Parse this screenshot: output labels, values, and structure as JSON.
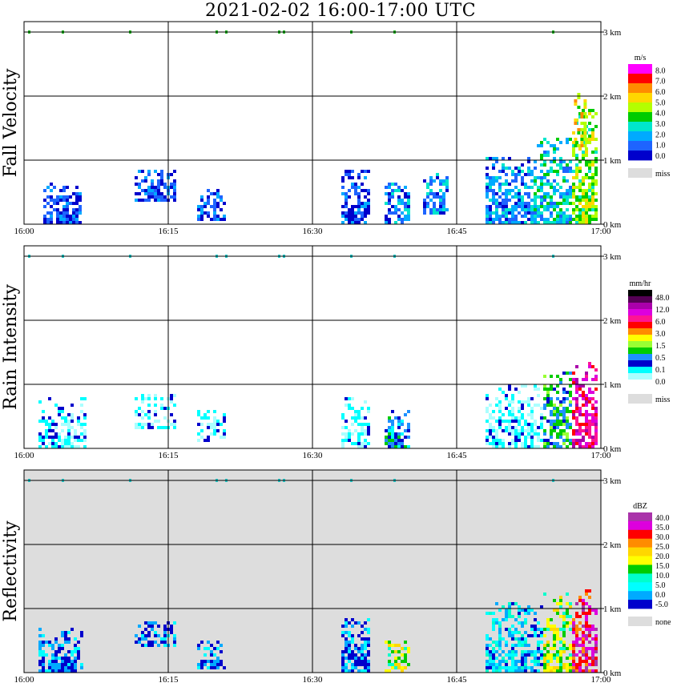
{
  "title": "2021-02-02   16:00-17:00 UTC",
  "chart_data": [
    {
      "type": "heatmap",
      "title": "Fall Velocity",
      "xlabel": "",
      "ylabel": "",
      "x_ticks": [
        "16:00",
        "16:15",
        "16:30",
        "16:45",
        "17:00"
      ],
      "y_ticks": [
        "0 km",
        "1 km",
        "2 km",
        "3 km"
      ],
      "xlim": [
        "16:00",
        "17:00"
      ],
      "ylim": [
        0,
        3.5
      ],
      "grid": true,
      "background": "#ffffff",
      "colorbar": {
        "unit": "m/s",
        "labels": [
          "8.0",
          "7.0",
          "6.0",
          "5.0",
          "4.0",
          "3.0",
          "2.0",
          "1.0",
          "0.0"
        ],
        "colors": [
          "#ff00ff",
          "#ff0000",
          "#ff8c00",
          "#ffd700",
          "#b4ff00",
          "#00cc00",
          "#00e6cc",
          "#00aaff",
          "#1e64ff",
          "#0000cc"
        ],
        "missing_label": "miss",
        "missing_color": "#dddddd"
      },
      "cells": [
        {
          "t0": 2.0,
          "t1": 6.0,
          "h0": 0.0,
          "h1": 0.65,
          "level": 9
        },
        {
          "t0": 11.5,
          "t1": 15.5,
          "h0": 0.35,
          "h1": 0.85,
          "level": 9
        },
        {
          "t0": 18.0,
          "t1": 21.0,
          "h0": 0.05,
          "h1": 0.55,
          "level": 9
        },
        {
          "t0": 33.0,
          "t1": 36.0,
          "h0": 0.0,
          "h1": 0.85,
          "level": 9
        },
        {
          "t0": 37.5,
          "t1": 40.0,
          "h0": 0.0,
          "h1": 0.65,
          "level": 8
        },
        {
          "t0": 41.5,
          "t1": 44.0,
          "h0": 0.15,
          "h1": 0.8,
          "level": 8
        },
        {
          "t0": 48.0,
          "t1": 53.0,
          "h0": 0.0,
          "h1": 1.05,
          "level": 8
        },
        {
          "t0": 53.0,
          "t1": 57.0,
          "h0": 0.0,
          "h1": 1.35,
          "level": 7
        },
        {
          "t0": 57.0,
          "t1": 59.5,
          "h0": 0.0,
          "h1": 1.8,
          "level": 5
        },
        {
          "t0": 57.2,
          "t1": 58.2,
          "h0": 1.2,
          "h1": 2.1,
          "level": 4
        }
      ],
      "top_marks": [
        0.5,
        4.0,
        11.0,
        20.0,
        21.0,
        26.5,
        27.0,
        34.0,
        38.5,
        55.0
      ]
    },
    {
      "type": "heatmap",
      "title": "Rain Intensity",
      "xlabel": "",
      "ylabel": "",
      "x_ticks": [
        "16:00",
        "16:15",
        "16:30",
        "16:45",
        "17:00"
      ],
      "y_ticks": [
        "0 km",
        "1 km",
        "2 km",
        "3 km"
      ],
      "xlim": [
        "16:00",
        "17:00"
      ],
      "ylim": [
        0,
        3.5
      ],
      "grid": true,
      "background": "#ffffff",
      "colorbar": {
        "unit": "mm/hr",
        "labels": [
          "48.0",
          "12.0",
          "6.0",
          "3.0",
          "1.5",
          "0.5",
          "0.1",
          "0.0"
        ],
        "colors": [
          "#000000",
          "#550055",
          "#aa00aa",
          "#dd00dd",
          "#ff1493",
          "#ff0000",
          "#ff8c00",
          "#ffff00",
          "#99ff33",
          "#00cc00",
          "#1e90ff",
          "#0000cc",
          "#00ffff",
          "#aaffff",
          "#ffffff"
        ],
        "missing_label": "miss",
        "missing_color": "#dddddd"
      },
      "cells": [
        {
          "t0": 1.5,
          "t1": 6.5,
          "h0": 0.0,
          "h1": 0.8,
          "level": 13
        },
        {
          "t0": 11.5,
          "t1": 15.5,
          "h0": 0.3,
          "h1": 0.85,
          "level": 13
        },
        {
          "t0": 18.0,
          "t1": 21.0,
          "h0": 0.1,
          "h1": 0.6,
          "level": 13
        },
        {
          "t0": 33.0,
          "t1": 36.0,
          "h0": 0.0,
          "h1": 0.8,
          "level": 13
        },
        {
          "t0": 37.5,
          "t1": 40.0,
          "h0": 0.0,
          "h1": 0.6,
          "level": 11
        },
        {
          "t0": 48.0,
          "t1": 54.0,
          "h0": 0.0,
          "h1": 1.0,
          "level": 13
        },
        {
          "t0": 54.0,
          "t1": 57.0,
          "h0": 0.0,
          "h1": 1.2,
          "level": 10
        },
        {
          "t0": 57.0,
          "t1": 59.5,
          "h0": 0.0,
          "h1": 1.35,
          "level": 4
        }
      ],
      "top_marks": [
        0.5,
        4.0,
        11.0,
        20.0,
        21.0,
        26.5,
        27.0,
        34.0,
        38.5,
        55.0
      ]
    },
    {
      "type": "heatmap",
      "title": "Reflectivity",
      "xlabel": "",
      "ylabel": "",
      "x_ticks": [
        "16:00",
        "16:15",
        "16:30",
        "16:45",
        "17:00"
      ],
      "y_ticks": [
        "0 km",
        "1 km",
        "2 km",
        "3 km"
      ],
      "xlim": [
        "16:00",
        "17:00"
      ],
      "ylim": [
        0,
        3.5
      ],
      "grid": true,
      "background": "#dddddd",
      "colorbar": {
        "unit": "dBZ",
        "labels": [
          "40.0",
          "35.0",
          "30.0",
          "25.0",
          "20.0",
          "15.0",
          "10.0",
          "5.0",
          "0.0",
          "-5.0"
        ],
        "colors": [
          "#aa33aa",
          "#dd00dd",
          "#ff0000",
          "#ff8c00",
          "#ffd700",
          "#ffff00",
          "#00cc00",
          "#00ffcc",
          "#00ffff",
          "#00aaff",
          "#0000cc"
        ],
        "missing_label": "none",
        "missing_color": "#dddddd"
      },
      "cells": [
        {
          "t0": 1.5,
          "t1": 6.0,
          "h0": 0.0,
          "h1": 0.7,
          "level": 10
        },
        {
          "t0": 11.5,
          "t1": 15.5,
          "h0": 0.4,
          "h1": 0.8,
          "level": 10
        },
        {
          "t0": 18.0,
          "t1": 21.0,
          "h0": 0.05,
          "h1": 0.5,
          "level": 10
        },
        {
          "t0": 33.0,
          "t1": 36.0,
          "h0": 0.0,
          "h1": 0.85,
          "level": 10
        },
        {
          "t0": 37.5,
          "t1": 40.0,
          "h0": 0.0,
          "h1": 0.55,
          "level": 6
        },
        {
          "t0": 48.0,
          "t1": 54.0,
          "h0": 0.0,
          "h1": 1.1,
          "level": 9
        },
        {
          "t0": 54.0,
          "t1": 57.0,
          "h0": 0.0,
          "h1": 1.25,
          "level": 6
        },
        {
          "t0": 57.0,
          "t1": 59.5,
          "h0": 0.0,
          "h1": 1.3,
          "level": 2
        }
      ],
      "top_marks": [
        0.5,
        4.0,
        11.0,
        20.0,
        21.0,
        26.5,
        27.0,
        34.0,
        38.5,
        55.0
      ]
    }
  ]
}
